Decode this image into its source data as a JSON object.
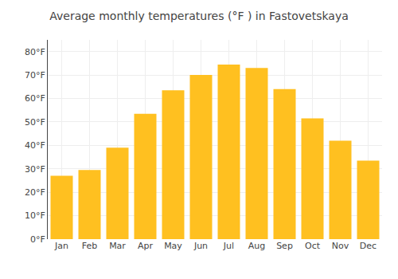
{
  "chart_data": {
    "type": "bar",
    "title": "Average monthly temperatures (°F ) in Fastovetskaya",
    "categories": [
      "Jan",
      "Feb",
      "Mar",
      "Apr",
      "May",
      "Jun",
      "Jul",
      "Aug",
      "Sep",
      "Oct",
      "Nov",
      "Dec"
    ],
    "values": [
      27,
      29.5,
      39,
      53.5,
      63.5,
      70,
      74.5,
      73,
      64,
      51.5,
      42,
      33.5
    ],
    "color": "#FFC020",
    "ylim": [
      0,
      85
    ],
    "yticks": [
      {
        "value": 0,
        "label": "0°F"
      },
      {
        "value": 10,
        "label": "10°F"
      },
      {
        "value": 20,
        "label": "20°F"
      },
      {
        "value": 30,
        "label": "30°F"
      },
      {
        "value": 40,
        "label": "40°F"
      },
      {
        "value": 50,
        "label": "50°F"
      },
      {
        "value": 60,
        "label": "60°F"
      },
      {
        "value": 70,
        "label": "70°F"
      },
      {
        "value": 80,
        "label": "80°F"
      }
    ],
    "grid": true
  }
}
